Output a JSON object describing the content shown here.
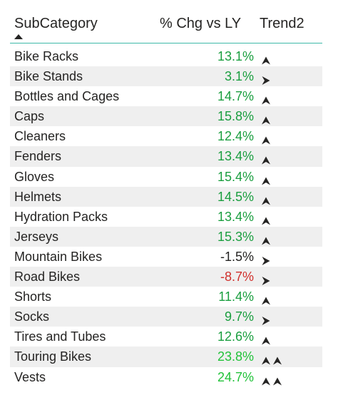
{
  "table": {
    "headers": {
      "subcategory": "SubCategory",
      "chg": "% Chg vs LY",
      "trend": "Trend2"
    },
    "sort": "ascending",
    "colors": {
      "green": "#1a9e3f",
      "bright_green": "#22c23a",
      "red": "#d0312d",
      "neutral": "#252423"
    },
    "rows": [
      {
        "name": "Bike Racks",
        "chg": "13.1%",
        "tone": "green",
        "trend": [
          "up-icon"
        ]
      },
      {
        "name": "Bike Stands",
        "chg": "3.1%",
        "tone": "green",
        "trend": [
          "right-icon"
        ]
      },
      {
        "name": "Bottles and Cages",
        "chg": "14.7%",
        "tone": "green",
        "trend": [
          "up-icon"
        ]
      },
      {
        "name": "Caps",
        "chg": "15.8%",
        "tone": "green",
        "trend": [
          "up-icon"
        ]
      },
      {
        "name": "Cleaners",
        "chg": "12.4%",
        "tone": "green",
        "trend": [
          "up-icon"
        ]
      },
      {
        "name": "Fenders",
        "chg": "13.4%",
        "tone": "green",
        "trend": [
          "up-icon"
        ]
      },
      {
        "name": "Gloves",
        "chg": "15.4%",
        "tone": "green",
        "trend": [
          "up-icon"
        ]
      },
      {
        "name": "Helmets",
        "chg": "14.5%",
        "tone": "green",
        "trend": [
          "up-icon"
        ]
      },
      {
        "name": "Hydration Packs",
        "chg": "13.4%",
        "tone": "green",
        "trend": [
          "up-icon"
        ]
      },
      {
        "name": "Jerseys",
        "chg": "15.3%",
        "tone": "green",
        "trend": [
          "up-icon"
        ]
      },
      {
        "name": "Mountain Bikes",
        "chg": "-1.5%",
        "tone": "neutral",
        "trend": [
          "right-icon"
        ]
      },
      {
        "name": "Road Bikes",
        "chg": "-8.7%",
        "tone": "red",
        "trend": [
          "right-icon"
        ]
      },
      {
        "name": "Shorts",
        "chg": "11.4%",
        "tone": "green",
        "trend": [
          "up-icon"
        ]
      },
      {
        "name": "Socks",
        "chg": "9.7%",
        "tone": "green",
        "trend": [
          "right-icon"
        ]
      },
      {
        "name": "Tires and Tubes",
        "chg": "12.6%",
        "tone": "green",
        "trend": [
          "up-icon"
        ]
      },
      {
        "name": "Touring Bikes",
        "chg": "23.8%",
        "tone": "bright_green",
        "trend": [
          "up-icon",
          "up-icon"
        ]
      },
      {
        "name": "Vests",
        "chg": "24.7%",
        "tone": "bright_green",
        "trend": [
          "up-icon",
          "up-icon"
        ]
      }
    ]
  }
}
